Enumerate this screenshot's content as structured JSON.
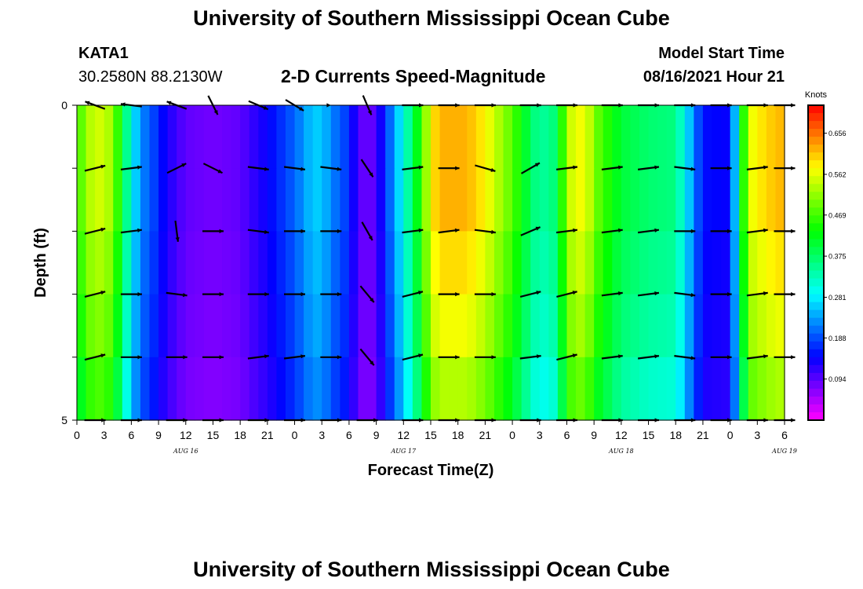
{
  "page": {
    "title_top": "University of Southern Mississippi Ocean Cube",
    "station_id": "KATA1",
    "station_coords": "30.2580N  88.2130W",
    "plot_title": "2-D Currents Speed-Magnitude",
    "model_label": "Model Start Time",
    "model_time": "08/16/2021 Hour 21",
    "title_bottom": "University of Southern Mississippi Ocean Cube"
  },
  "chart_data": {
    "type": "heatmap",
    "title": "2-D Currents Speed-Magnitude",
    "xlabel": "Forecast Time(Z)",
    "ylabel": "Depth (ft)",
    "colorbar_label": "Knots",
    "x_tick_labels": [
      "0",
      "3",
      "6",
      "9",
      "12",
      "15",
      "18",
      "21",
      "0",
      "3",
      "6",
      "9",
      "12",
      "15",
      "18",
      "21",
      "0",
      "3",
      "6",
      "9",
      "12",
      "15",
      "18",
      "21",
      "0",
      "3",
      "6"
    ],
    "date_labels": [
      {
        "label": "AUG 16",
        "hour": 12
      },
      {
        "label": "AUG 17",
        "hour": 36
      },
      {
        "label": "AUG 18",
        "hour": 60
      },
      {
        "label": "AUG 19",
        "hour": 78
      }
    ],
    "xlim": [
      0,
      78
    ],
    "ylim": [
      0,
      5
    ],
    "y_tick_labels": [
      "0",
      "",
      "",
      "",
      "",
      "5"
    ],
    "y_ticks": [
      0,
      1,
      2,
      3,
      4,
      5
    ],
    "colorbar_ticks": [
      0.656,
      0.562,
      0.469,
      0.375,
      0.281,
      0.188,
      0.094
    ],
    "colorbar_range": [
      0.0,
      0.72
    ],
    "depth_levels": 5,
    "time_step_hours": 1,
    "profile_hours": [
      0,
      2,
      4,
      5,
      6,
      7,
      8,
      9,
      10,
      11,
      12,
      15,
      18,
      19,
      21,
      22,
      24,
      26,
      27,
      28,
      30,
      31,
      32,
      33,
      34,
      36,
      38,
      39,
      40,
      41,
      43,
      45,
      48,
      50,
      51,
      53,
      54,
      56,
      57,
      60,
      63,
      66,
      69,
      72,
      74,
      76,
      78
    ],
    "profile_speed": [
      0.46,
      0.56,
      0.52,
      0.4,
      0.3,
      0.22,
      0.2,
      0.16,
      0.13,
      0.11,
      0.09,
      0.08,
      0.09,
      0.11,
      0.14,
      0.16,
      0.2,
      0.26,
      0.26,
      0.22,
      0.17,
      0.1,
      0.08,
      0.1,
      0.17,
      0.3,
      0.46,
      0.58,
      0.62,
      0.62,
      0.62,
      0.58,
      0.48,
      0.38,
      0.34,
      0.37,
      0.54,
      0.58,
      0.5,
      0.4,
      0.37,
      0.36,
      0.15,
      0.14,
      0.56,
      0.6,
      0.62
    ],
    "depth_factor": [
      1.0,
      1.0,
      0.96,
      0.92,
      0.86
    ],
    "vectors": {
      "hours": [
        2,
        6,
        11,
        15,
        20,
        24,
        28,
        32,
        37,
        41,
        45,
        50,
        54,
        59,
        63,
        67,
        71,
        75,
        78
      ],
      "depths": [
        0,
        1,
        2,
        3,
        4,
        5
      ],
      "u": [
        [
          -0.8,
          -0.8,
          -0.8,
          0.3,
          0.7,
          0.5,
          0.0,
          0.3,
          0.8,
          0.8,
          0.6,
          0.8,
          0.8,
          0.8,
          0.8,
          0.8,
          0.8,
          0.8,
          0.8
        ],
        [
          0.8,
          0.8,
          0.6,
          0.6,
          0.8,
          0.8,
          0.8,
          0.4,
          0.8,
          0.8,
          0.7,
          0.7,
          0.8,
          0.8,
          0.8,
          0.8,
          0.8,
          0.8,
          0.8
        ],
        [
          0.8,
          0.8,
          0.1,
          0.8,
          0.8,
          0.8,
          0.8,
          0.4,
          0.8,
          0.8,
          0.8,
          0.7,
          0.8,
          0.8,
          0.8,
          0.8,
          0.8,
          0.8,
          0.8
        ],
        [
          0.8,
          0.8,
          0.8,
          0.8,
          0.8,
          0.8,
          0.8,
          0.5,
          0.8,
          0.8,
          0.8,
          0.8,
          0.8,
          0.8,
          0.8,
          0.8,
          0.8,
          0.8,
          0.8
        ],
        [
          0.8,
          0.8,
          0.8,
          0.8,
          0.8,
          0.8,
          0.8,
          0.5,
          0.8,
          0.8,
          0.8,
          0.8,
          0.8,
          0.8,
          0.8,
          0.8,
          0.8,
          0.8,
          0.8
        ],
        [
          0.8,
          0.8,
          0.8,
          0.8,
          0.8,
          0.8,
          0.8,
          0.5,
          0.8,
          0.8,
          0.8,
          0.8,
          0.8,
          0.8,
          0.8,
          0.8,
          0.8,
          0.8,
          0.8
        ]
      ],
      "v": [
        [
          0.3,
          0.1,
          0.3,
          -0.6,
          -0.3,
          -0.3,
          0.0,
          -0.7,
          0.0,
          0.0,
          0.0,
          0.0,
          0.0,
          0.0,
          0.0,
          0.0,
          0.0,
          0.0,
          0.0
        ],
        [
          0.2,
          0.1,
          0.3,
          -0.3,
          -0.1,
          -0.1,
          -0.1,
          -0.6,
          0.1,
          0.0,
          -0.2,
          0.4,
          0.1,
          0.1,
          0.1,
          -0.1,
          0.0,
          0.1,
          0.0
        ],
        [
          0.2,
          0.1,
          -0.8,
          0.0,
          -0.1,
          0.0,
          0.0,
          -0.7,
          0.1,
          0.1,
          -0.1,
          0.3,
          0.1,
          0.1,
          0.1,
          0.0,
          0.0,
          0.1,
          0.0
        ],
        [
          0.2,
          0.0,
          -0.1,
          0.0,
          0.0,
          0.0,
          0.0,
          -0.6,
          0.2,
          0.0,
          0.0,
          0.2,
          0.2,
          0.1,
          0.1,
          -0.1,
          0.0,
          0.1,
          0.0
        ],
        [
          0.2,
          0.0,
          0.0,
          0.0,
          0.1,
          0.1,
          0.0,
          -0.6,
          0.2,
          0.0,
          0.0,
          0.1,
          0.2,
          0.1,
          0.1,
          -0.1,
          0.0,
          0.1,
          0.0
        ],
        [
          0.0,
          0.0,
          0.0,
          0.0,
          0.0,
          0.0,
          0.0,
          0.0,
          0.0,
          0.0,
          0.0,
          0.0,
          0.0,
          0.0,
          0.0,
          0.0,
          0.0,
          0.0,
          0.0
        ]
      ]
    }
  }
}
